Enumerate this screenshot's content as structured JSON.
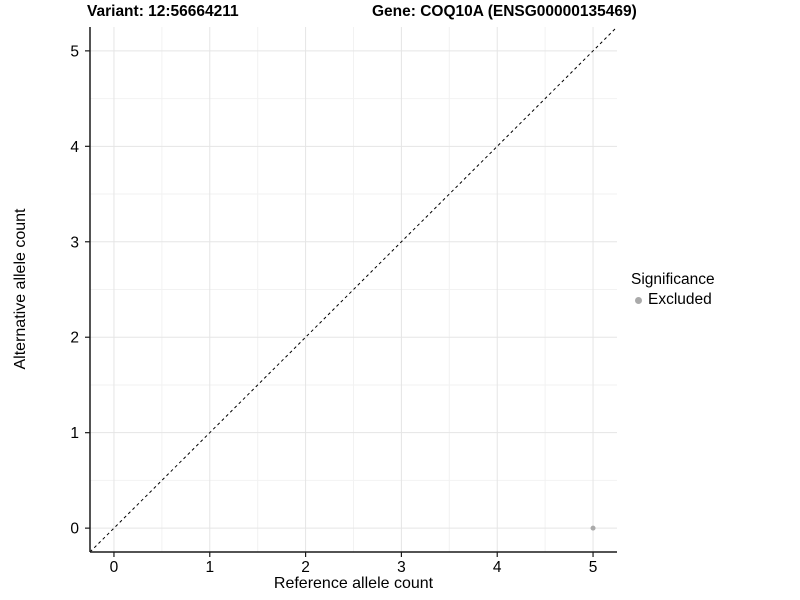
{
  "chart_data": {
    "type": "scatter",
    "title_left": "Variant: 12:56664211",
    "title_right": "Gene: COQ10A (ENSG00000135469)",
    "xlabel": "Reference allele count",
    "ylabel": "Alternative allele count",
    "xlim": [
      -0.25,
      5.25
    ],
    "ylim": [
      -0.25,
      5.25
    ],
    "x_ticks": [
      0,
      1,
      2,
      3,
      4,
      5
    ],
    "y_ticks": [
      0,
      1,
      2,
      3,
      4,
      5
    ],
    "x_minor_gridlines": [
      0.5,
      1.5,
      2.5,
      3.5,
      4.5
    ],
    "y_minor_gridlines": [
      0.5,
      1.5,
      2.5,
      3.5,
      4.5
    ],
    "grid": "major and minor, light gray on white",
    "reference_line": {
      "kind": "identity y=x",
      "from": [
        -0.25,
        -0.25
      ],
      "to": [
        5.25,
        5.25
      ],
      "style": "dashed",
      "color": "#000000"
    },
    "series": [
      {
        "name": "Excluded",
        "color": "#aaaaaa",
        "marker": "circle",
        "points": [
          [
            5,
            0
          ]
        ]
      }
    ],
    "legend": {
      "title": "Significance",
      "position": "right",
      "entries": [
        {
          "label": "Excluded",
          "color": "#aaaaaa"
        }
      ]
    },
    "colors": {
      "background": "#ffffff",
      "grid_major": "#e5e5e5",
      "grid_minor": "#f2f2f2",
      "axis_line": "#1a1a1a",
      "tick_text": "#000000",
      "point": "#aaaaaa"
    }
  }
}
